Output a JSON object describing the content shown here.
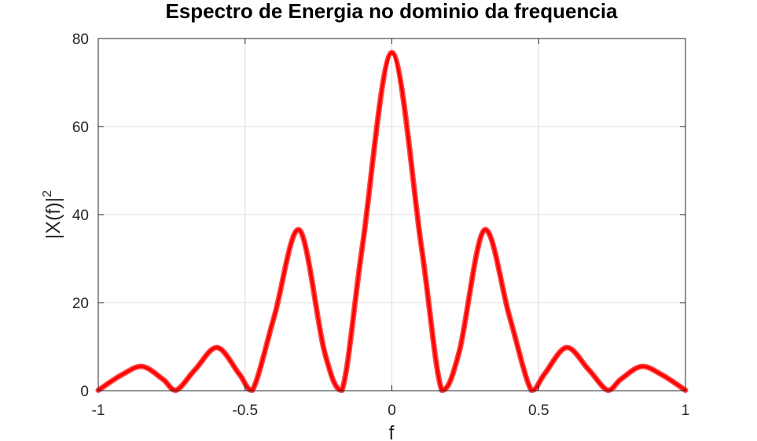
{
  "chart_data": {
    "type": "line",
    "title": "Espectro de Energia no dominio da frequencia",
    "xlabel": "f",
    "ylabel_base": "|X(f)|",
    "ylabel_sup": "2",
    "xlim": [
      -1,
      1
    ],
    "ylim": [
      0,
      80
    ],
    "xticks": [
      -1,
      -0.5,
      0,
      0.5,
      1
    ],
    "xtick_labels": [
      "-1",
      "-0.5",
      "0",
      "0.5",
      "1"
    ],
    "yticks": [
      0,
      20,
      40,
      60,
      80
    ],
    "ytick_labels": [
      "0",
      "20",
      "40",
      "60",
      "80"
    ],
    "grid": true,
    "line_color": "#ff0000",
    "series": [
      {
        "x": [
          -1.0,
          -0.92,
          -0.85,
          -0.78,
          -0.735,
          -0.67,
          -0.595,
          -0.52,
          -0.475,
          -0.4,
          -0.315,
          -0.23,
          -0.17,
          -0.1,
          0.0,
          0.1,
          0.17,
          0.23,
          0.315,
          0.4,
          0.475,
          0.52,
          0.595,
          0.67,
          0.735,
          0.78,
          0.85,
          0.92,
          1.0
        ],
        "y": [
          0.1,
          3.6,
          5.5,
          2.6,
          0.1,
          4.8,
          9.8,
          3.8,
          0.1,
          17.0,
          36.5,
          9.0,
          0.1,
          33.0,
          76.8,
          33.0,
          0.1,
          9.0,
          36.5,
          17.0,
          0.1,
          3.8,
          9.8,
          4.8,
          0.1,
          2.6,
          5.5,
          3.6,
          0.1
        ]
      }
    ]
  }
}
